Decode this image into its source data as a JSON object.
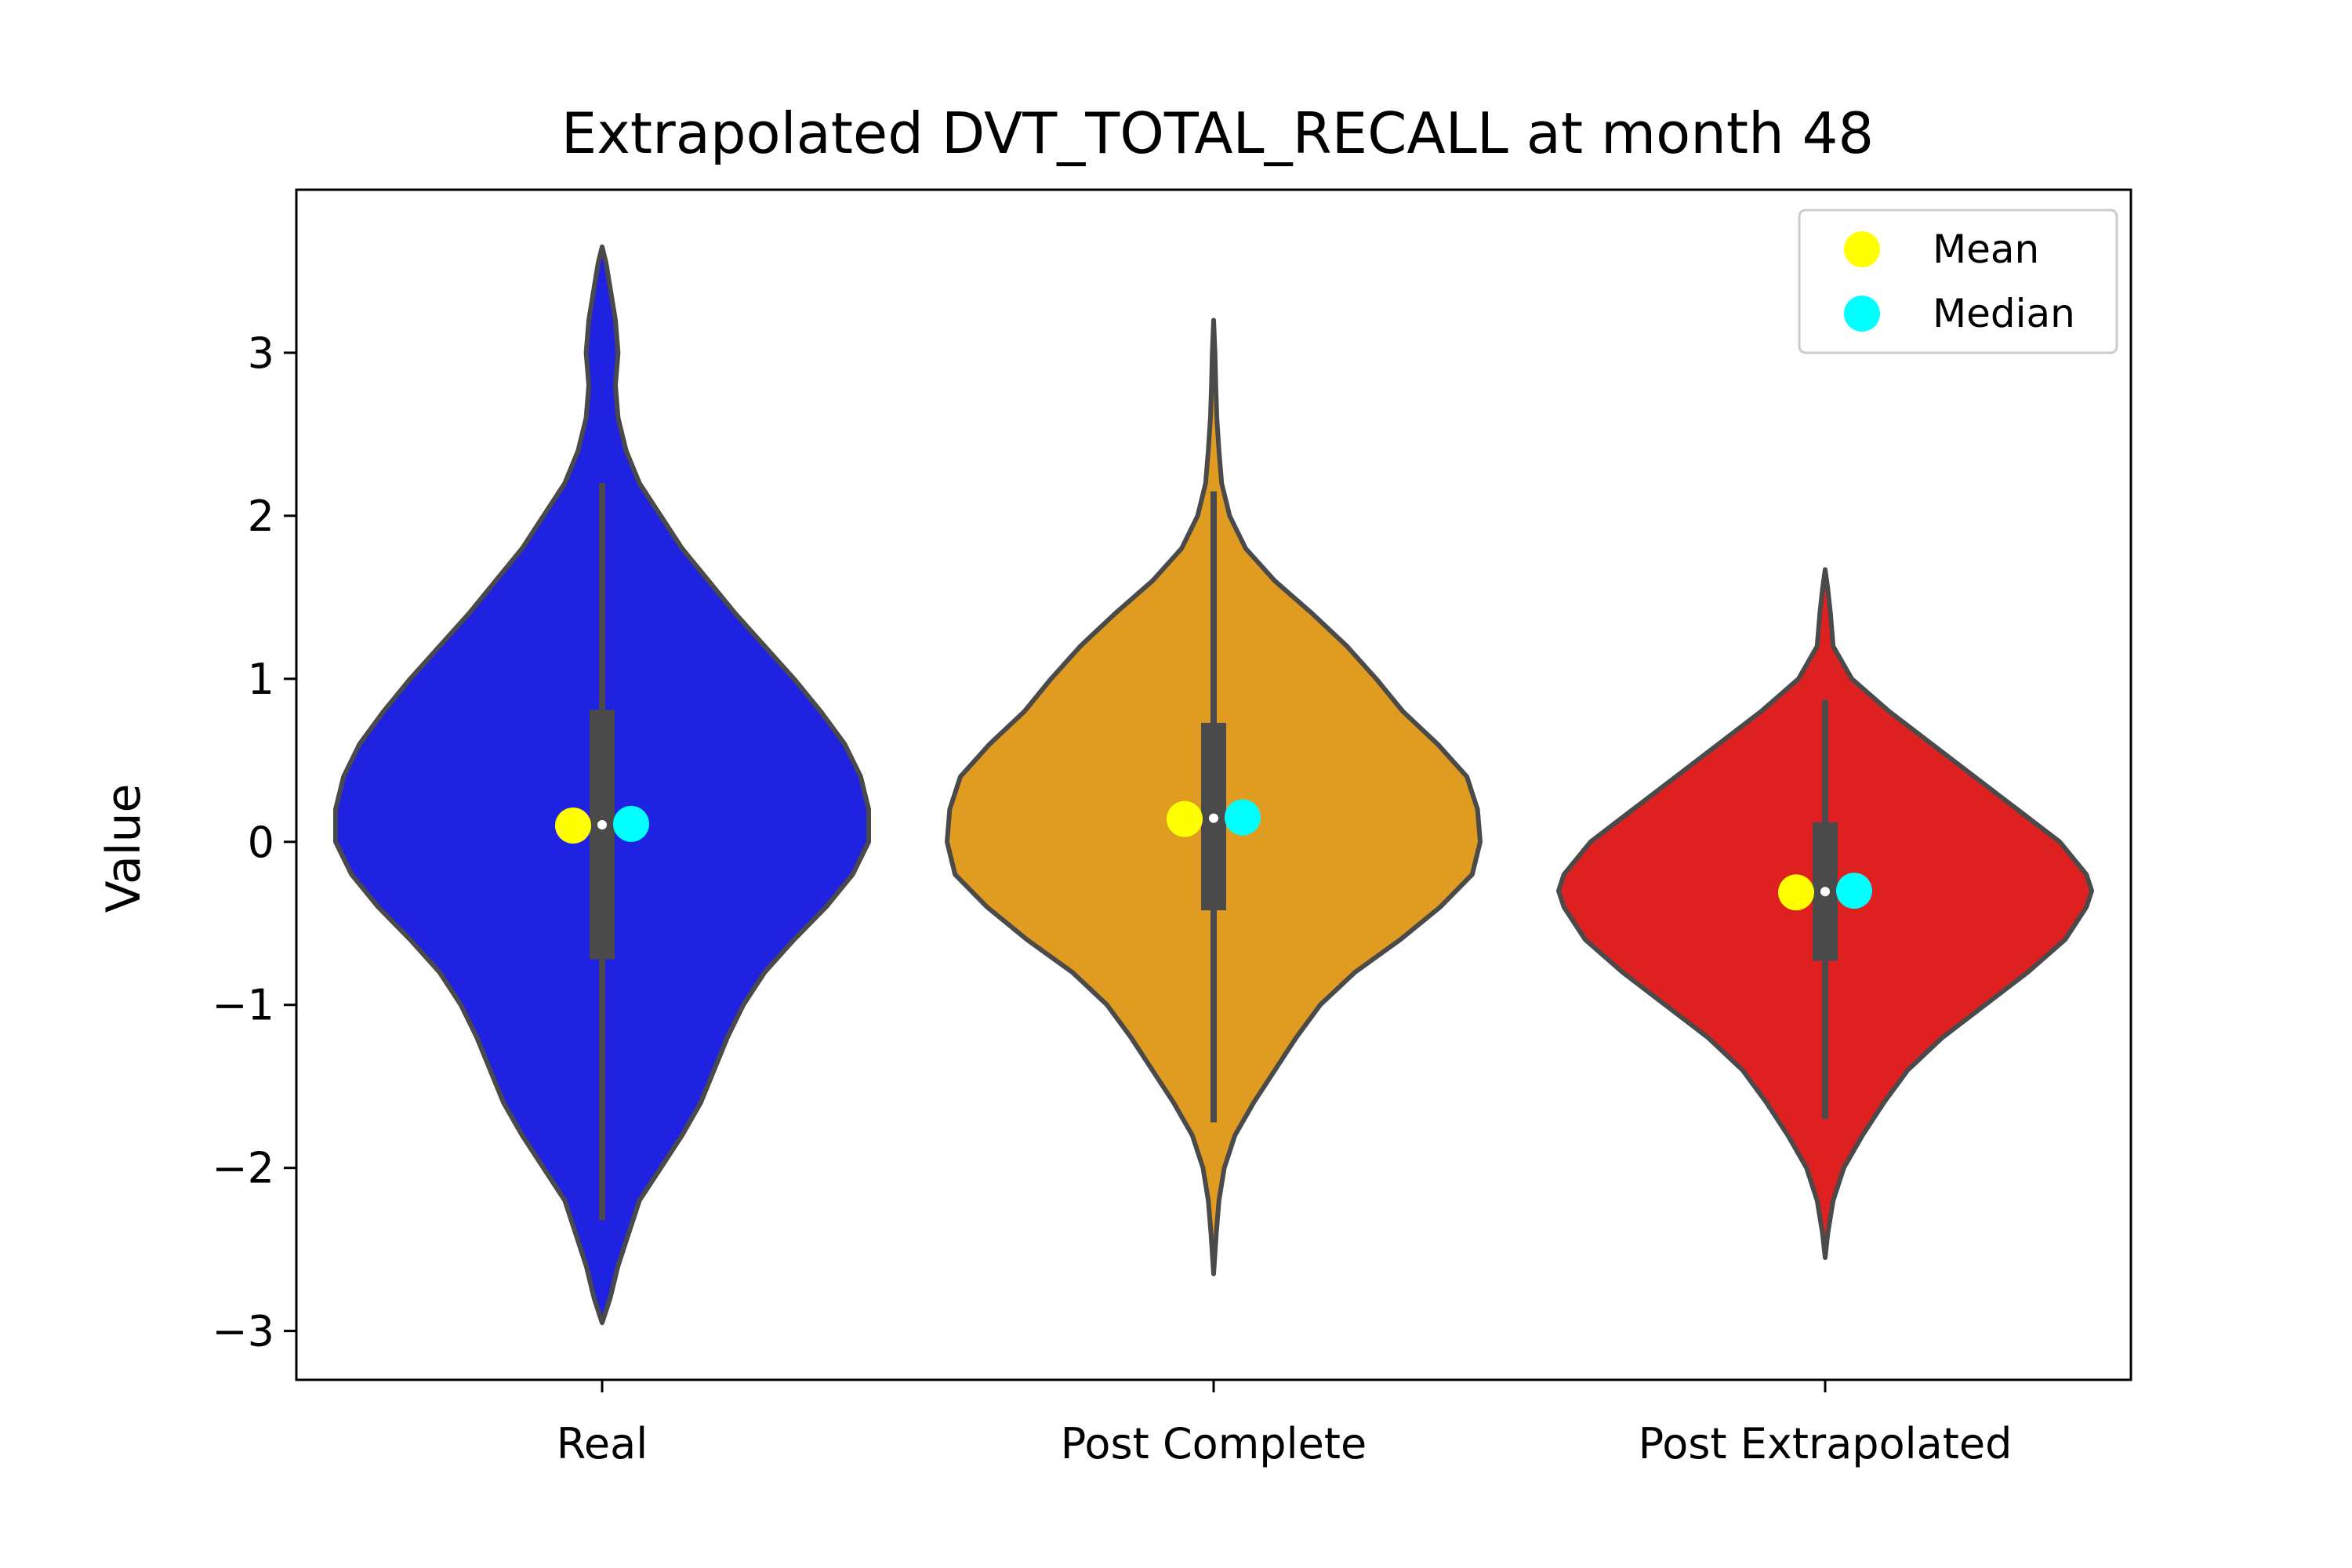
{
  "chart_data": {
    "type": "violin",
    "title": "Extrapolated DVT_TOTAL_RECALL at month 48",
    "xlabel": "",
    "ylabel": "Value",
    "ylim": [
      -3.3,
      4.0
    ],
    "yticks": [
      -3,
      -2,
      -1,
      0,
      1,
      2,
      3
    ],
    "ytick_labels": [
      "−3",
      "−2",
      "−1",
      "0",
      "1",
      "2",
      "3"
    ],
    "categories": [
      "Real",
      "Post Complete",
      "Post Extrapolated"
    ],
    "grid": false,
    "legend": {
      "position": "top-right",
      "entries": [
        {
          "label": "Mean",
          "color": "#ffff00"
        },
        {
          "label": "Median",
          "color": "#00ffff"
        }
      ]
    },
    "outline_color": "#4a4a4a",
    "series": [
      {
        "category": "Real",
        "color": "#1f22e0",
        "mean": 0.1,
        "median": 0.11,
        "q1": -0.72,
        "q3": 0.81,
        "whisker_low": -2.32,
        "whisker_high": 2.2,
        "min": -2.95,
        "max": 3.65,
        "density": [
          [
            -2.95,
            0.0
          ],
          [
            -2.8,
            0.03
          ],
          [
            -2.6,
            0.06
          ],
          [
            -2.4,
            0.1
          ],
          [
            -2.2,
            0.14
          ],
          [
            -2.0,
            0.22
          ],
          [
            -1.8,
            0.3
          ],
          [
            -1.6,
            0.37
          ],
          [
            -1.4,
            0.42
          ],
          [
            -1.2,
            0.47
          ],
          [
            -1.0,
            0.53
          ],
          [
            -0.8,
            0.61
          ],
          [
            -0.6,
            0.72
          ],
          [
            -0.4,
            0.84
          ],
          [
            -0.2,
            0.94
          ],
          [
            0.0,
            1.0
          ],
          [
            0.2,
            1.0
          ],
          [
            0.4,
            0.97
          ],
          [
            0.6,
            0.91
          ],
          [
            0.8,
            0.82
          ],
          [
            1.0,
            0.72
          ],
          [
            1.2,
            0.61
          ],
          [
            1.4,
            0.5
          ],
          [
            1.6,
            0.4
          ],
          [
            1.8,
            0.3
          ],
          [
            2.0,
            0.22
          ],
          [
            2.2,
            0.14
          ],
          [
            2.4,
            0.09
          ],
          [
            2.6,
            0.06
          ],
          [
            2.8,
            0.05
          ],
          [
            3.0,
            0.06
          ],
          [
            3.2,
            0.05
          ],
          [
            3.4,
            0.03
          ],
          [
            3.55,
            0.015
          ],
          [
            3.65,
            0.0
          ]
        ]
      },
      {
        "category": "Post Complete",
        "color": "#e09c20",
        "mean": 0.14,
        "median": 0.15,
        "q1": -0.42,
        "q3": 0.73,
        "whisker_low": -1.72,
        "whisker_high": 2.15,
        "min": -2.65,
        "max": 3.2,
        "density": [
          [
            -2.65,
            0.0
          ],
          [
            -2.4,
            0.01
          ],
          [
            -2.2,
            0.02
          ],
          [
            -2.0,
            0.04
          ],
          [
            -1.8,
            0.08
          ],
          [
            -1.6,
            0.15
          ],
          [
            -1.4,
            0.23
          ],
          [
            -1.2,
            0.31
          ],
          [
            -1.0,
            0.4
          ],
          [
            -0.8,
            0.53
          ],
          [
            -0.6,
            0.7
          ],
          [
            -0.4,
            0.85
          ],
          [
            -0.2,
            0.97
          ],
          [
            0.0,
            1.0
          ],
          [
            0.2,
            0.99
          ],
          [
            0.4,
            0.95
          ],
          [
            0.6,
            0.84
          ],
          [
            0.8,
            0.71
          ],
          [
            1.0,
            0.61
          ],
          [
            1.2,
            0.5
          ],
          [
            1.4,
            0.37
          ],
          [
            1.6,
            0.23
          ],
          [
            1.8,
            0.12
          ],
          [
            2.0,
            0.06
          ],
          [
            2.2,
            0.03
          ],
          [
            2.4,
            0.02
          ],
          [
            2.6,
            0.012
          ],
          [
            2.8,
            0.008
          ],
          [
            3.0,
            0.005
          ],
          [
            3.2,
            0.0
          ]
        ]
      },
      {
        "category": "Post Extrapolated",
        "color": "#df2020",
        "mean": -0.31,
        "median": -0.3,
        "q1": -0.73,
        "q3": 0.12,
        "whisker_low": -1.7,
        "whisker_high": 0.87,
        "min": -2.55,
        "max": 1.67,
        "density": [
          [
            -2.55,
            0.0
          ],
          [
            -2.4,
            0.01
          ],
          [
            -2.2,
            0.03
          ],
          [
            -2.0,
            0.07
          ],
          [
            -1.8,
            0.14
          ],
          [
            -1.6,
            0.22
          ],
          [
            -1.4,
            0.31
          ],
          [
            -1.2,
            0.44
          ],
          [
            -1.0,
            0.6
          ],
          [
            -0.8,
            0.76
          ],
          [
            -0.6,
            0.9
          ],
          [
            -0.4,
            0.98
          ],
          [
            -0.3,
            1.0
          ],
          [
            -0.2,
            0.98
          ],
          [
            0.0,
            0.88
          ],
          [
            0.2,
            0.72
          ],
          [
            0.4,
            0.56
          ],
          [
            0.6,
            0.4
          ],
          [
            0.8,
            0.24
          ],
          [
            1.0,
            0.1
          ],
          [
            1.2,
            0.03
          ],
          [
            1.4,
            0.02
          ],
          [
            1.55,
            0.01
          ],
          [
            1.67,
            0.0
          ]
        ]
      }
    ]
  }
}
